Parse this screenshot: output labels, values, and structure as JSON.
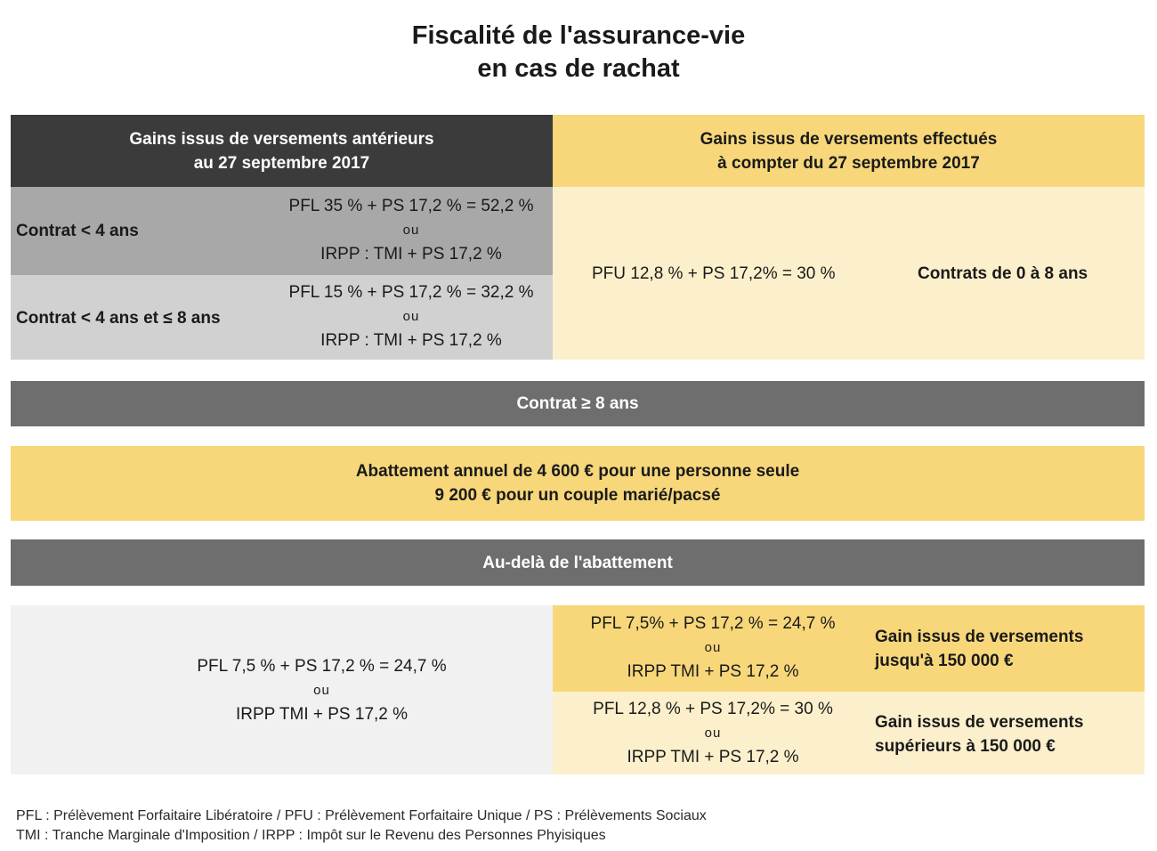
{
  "title": {
    "line1": "Fiscalité de l'assurance-vie",
    "line2": "en cas de rachat"
  },
  "header": {
    "left": {
      "line1": "Gains issus de versements antérieurs",
      "line2": "au 27 septembre 2017"
    },
    "right": {
      "line1": "Gains issus de versements effectués",
      "line2": "à compter du 27 septembre 2017"
    }
  },
  "before_2017": {
    "row1": {
      "label": "Contrat < 4 ans",
      "rate": "PFL 35 % + PS 17,2 % = 52,2 %",
      "or": "ou",
      "alt": "IRPP : TMI + PS 17,2 %"
    },
    "row2": {
      "label": "Contrat < 4 ans et ≤ 8 ans",
      "rate": "PFL 15 % + PS 17,2 % = 32,2 %",
      "or": "ou",
      "alt": "IRPP : TMI + PS 17,2 %"
    }
  },
  "after_2017": {
    "rate": "PFU 12,8 % + PS 17,2% = 30 %",
    "label": "Contrats de 0 à 8 ans"
  },
  "over_8_years": {
    "label": "Contrat ≥ 8 ans"
  },
  "allowance": {
    "line1": "Abattement annuel de 4 600 € pour une personne seule",
    "line2": "9 200 € pour un couple marié/pacsé"
  },
  "beyond_allowance": {
    "label": "Au-delà de l'abattement"
  },
  "beyond_left": {
    "rate": "PFL 7,5 % + PS 17,2 % = 24,7 %",
    "or": "ou",
    "alt": "IRPP TMI + PS 17,2 %"
  },
  "beyond_right": {
    "row1": {
      "rate": "PFL 7,5% + PS 17,2 % = 24,7 %",
      "or": "ou",
      "alt": "IRPP TMI + PS 17,2 %",
      "label_line1": "Gain issus de versements",
      "label_line2": "jusqu'à 150 000 €"
    },
    "row2": {
      "rate": "PFL 12,8 % + PS 17,2% = 30 %",
      "or": "ou",
      "alt": "IRPP TMI + PS 17,2 %",
      "label_line1": "Gain issus de versements",
      "label_line2": "supérieurs à 150 000 €"
    }
  },
  "footer": {
    "line1": "PFL : Prélèvement Forfaitaire Libératoire / PFU : Prélèvement Forfaitaire Unique / PS : Prélèvements Sociaux",
    "line2": "TMI : Tranche Marginale d'Imposition / IRPP : Impôt sur le Revenu des Personnes Phyisiques"
  },
  "colors": {
    "dark_header": "#3b3b3b",
    "gold": "#f7d77a",
    "cream": "#fcf0cc",
    "gray_dark": "#a8a8a8",
    "gray_mid": "#d1d1d1",
    "gray_band": "#6e6e6e",
    "gray_light": "#f1f1f1"
  }
}
